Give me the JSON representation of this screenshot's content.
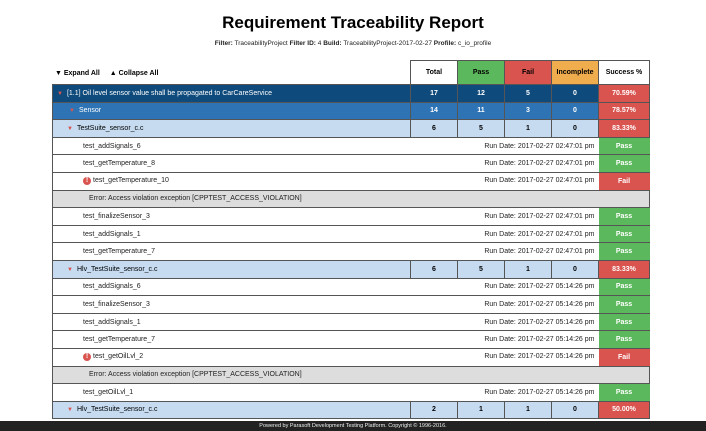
{
  "title": "Requirement Traceability Report",
  "filter": {
    "filter_label": "Filter:",
    "filter": "TraceabilityProject",
    "filter_id_label": "Filter ID:",
    "filter_id": "4",
    "build_label": "Build:",
    "build": "TraceabilityProject-2017-02-27",
    "profile_label": "Profile:",
    "profile": "c_io_profile"
  },
  "controls": {
    "expand": "▼ Expand All",
    "collapse": "▲ Collapse All"
  },
  "headers": {
    "total": "Total",
    "pass": "Pass",
    "fail": "Fail",
    "incomplete": "Incomplete",
    "success": "Success %"
  },
  "colors": {
    "pass": "#5cb85c",
    "fail": "#d9534f",
    "incomplete": "#f0ad4e",
    "requirement": "#0e4a7c",
    "group": "#2e74b5",
    "suite": "#c6dbf0"
  },
  "rows": [
    {
      "type": "req",
      "name": "[1.1] Oil level sensor value shall be propagated to CarCareService",
      "total": "17",
      "pass": "12",
      "fail": "5",
      "incomplete": "0",
      "success": "70.59%"
    },
    {
      "type": "grp",
      "name": "Sensor",
      "total": "14",
      "pass": "11",
      "fail": "3",
      "incomplete": "0",
      "success": "78.57%"
    },
    {
      "type": "suite",
      "name": "TestSuite_sensor_c.c",
      "total": "6",
      "pass": "5",
      "fail": "1",
      "incomplete": "0",
      "success": "83.33%"
    },
    {
      "type": "test",
      "name": "test_addSignals_6",
      "date": "Run Date: 2017-02-27 02:47:01 pm",
      "result": "Pass"
    },
    {
      "type": "test",
      "name": "test_getTemperature_8",
      "date": "Run Date: 2017-02-27 02:47:01 pm",
      "result": "Pass"
    },
    {
      "type": "test",
      "name": "test_getTemperature_10",
      "date": "Run Date: 2017-02-27 02:47:01 pm",
      "result": "Fail"
    },
    {
      "type": "err",
      "name": "Error: Access violation exception [CPPTEST_ACCESS_VIOLATION]"
    },
    {
      "type": "test",
      "name": "test_finalizeSensor_3",
      "date": "Run Date: 2017-02-27 02:47:01 pm",
      "result": "Pass"
    },
    {
      "type": "test",
      "name": "test_addSignals_1",
      "date": "Run Date: 2017-02-27 02:47:01 pm",
      "result": "Pass"
    },
    {
      "type": "test",
      "name": "test_getTemperature_7",
      "date": "Run Date: 2017-02-27 02:47:01 pm",
      "result": "Pass"
    },
    {
      "type": "suite",
      "name": "Hlv_TestSuite_sensor_c.c",
      "total": "6",
      "pass": "5",
      "fail": "1",
      "incomplete": "0",
      "success": "83.33%"
    },
    {
      "type": "test",
      "name": "test_addSignals_6",
      "date": "Run Date: 2017-02-27 05:14:26 pm",
      "result": "Pass"
    },
    {
      "type": "test",
      "name": "test_finalizeSensor_3",
      "date": "Run Date: 2017-02-27 05:14:26 pm",
      "result": "Pass"
    },
    {
      "type": "test",
      "name": "test_addSignals_1",
      "date": "Run Date: 2017-02-27 05:14:26 pm",
      "result": "Pass"
    },
    {
      "type": "test",
      "name": "test_getTemperature_7",
      "date": "Run Date: 2017-02-27 05:14:26 pm",
      "result": "Pass"
    },
    {
      "type": "test",
      "name": "test_getOilLvl_2",
      "date": "Run Date: 2017-02-27 05:14:26 pm",
      "result": "Fail"
    },
    {
      "type": "err",
      "name": "Error: Access violation exception [CPPTEST_ACCESS_VIOLATION]"
    },
    {
      "type": "test",
      "name": "test_getOilLvl_1",
      "date": "Run Date: 2017-02-27 05:14:26 pm",
      "result": "Pass"
    },
    {
      "type": "suite",
      "name": "Hlv_TestSuite_sensor_c.c",
      "total": "2",
      "pass": "1",
      "fail": "1",
      "incomplete": "0",
      "success": "50.00%"
    }
  ],
  "footer": "Powered by Parasoft Development Testing Platform. Copyright © 1996-2016."
}
